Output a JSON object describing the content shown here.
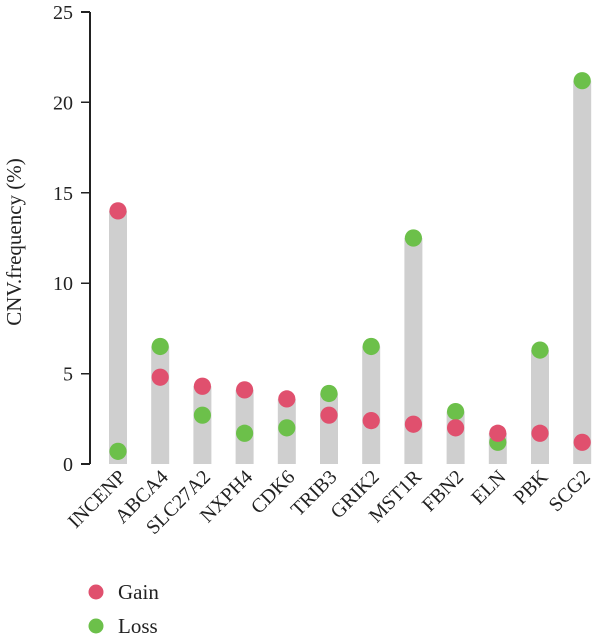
{
  "chart_data": {
    "type": "scatter",
    "subtype": "dumbbell",
    "title": "",
    "xlabel": "",
    "ylabel": "CNV.frequency (%)",
    "ylim": [
      0,
      25
    ],
    "yticks": [
      0,
      5,
      10,
      15,
      20,
      25
    ],
    "categories": [
      "INCENP",
      "ABCA4",
      "SLC27A2",
      "NXPH4",
      "CDK6",
      "TRIB3",
      "GRIK2",
      "MST1R",
      "FBN2",
      "ELN",
      "PBK",
      "SCG2"
    ],
    "series": [
      {
        "name": "Gain",
        "color": "#e0506e",
        "values": [
          14.0,
          4.8,
          4.3,
          4.1,
          3.6,
          2.7,
          2.4,
          2.2,
          2.0,
          1.7,
          1.7,
          1.2
        ]
      },
      {
        "name": "Loss",
        "color": "#6cc04a",
        "values": [
          0.7,
          6.5,
          2.7,
          1.7,
          2.0,
          3.9,
          6.5,
          12.5,
          2.9,
          1.2,
          6.3,
          21.2
        ]
      }
    ],
    "bar_color": "#cfcfcf",
    "legend": {
      "position": "bottom-left",
      "entries": [
        "Gain",
        "Loss"
      ]
    },
    "grid": false
  }
}
